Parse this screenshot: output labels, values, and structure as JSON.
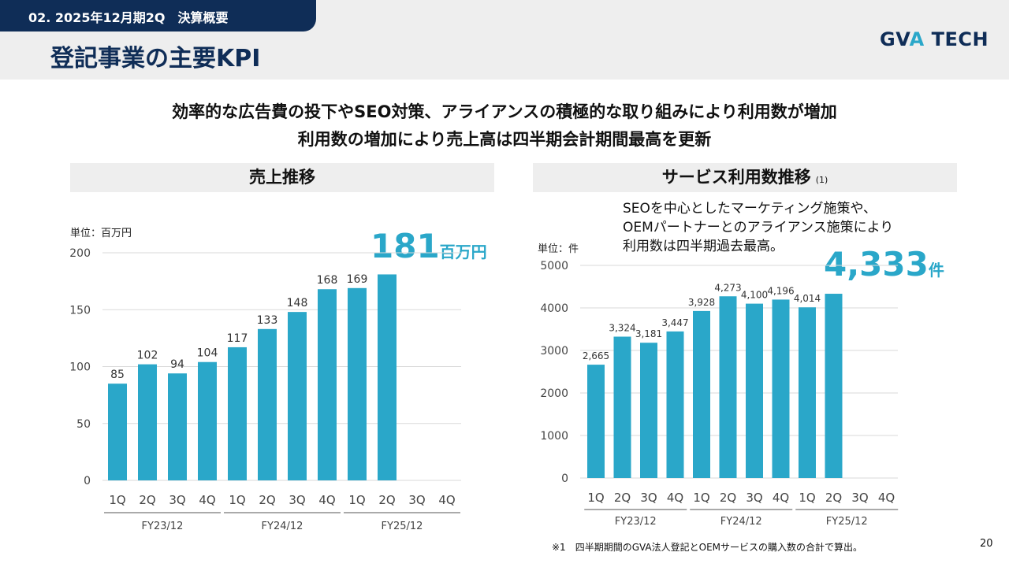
{
  "header": {
    "section_tag": "02. 2025年12月期2Q　決算概要",
    "title": "登記事業の主要KPI",
    "logo_main": "GV",
    "logo_accent": "A",
    "logo_rest": " TECH"
  },
  "headline": {
    "line1": "効率的な広告費の投下やSEO対策、アライアンスの積極的な取り組みにより利用数が増加",
    "line2": "利用数の増加により売上高は四半期会計期間最高を更新"
  },
  "sales_panel": {
    "title": "売上推移",
    "unit": "単位：百万円",
    "highlight_value": "181",
    "highlight_suffix": "百万円"
  },
  "usage_panel": {
    "title": "サービス利用数推移",
    "title_note": "(1)",
    "unit": "単位：件",
    "highlight_value": "4,333",
    "highlight_suffix": "件",
    "callout": [
      "SEOを中心としたマーケティング施策や、",
      "OEMパートナーとのアライアンス施策により",
      "利用数は四半期過去最高。"
    ]
  },
  "footnote": "※1　四半期期間のGVA法人登記とOEMサービスの購入数の合計で算出。",
  "page_number": "20",
  "colors": {
    "bar": "#2aa7c9",
    "navy": "#0f2d57",
    "grid": "#d9d9d9"
  },
  "chart_data": [
    {
      "type": "bar",
      "title": "売上推移",
      "ylabel": "単位：百万円",
      "ylim": [
        0,
        200
      ],
      "yticks": [
        0,
        50,
        100,
        150,
        200
      ],
      "categories": [
        "1Q",
        "2Q",
        "3Q",
        "4Q",
        "1Q",
        "2Q",
        "3Q",
        "4Q",
        "1Q",
        "2Q",
        "3Q",
        "4Q"
      ],
      "groups": [
        {
          "label": "FY23/12",
          "size": 4
        },
        {
          "label": "FY24/12",
          "size": 4
        },
        {
          "label": "FY25/12",
          "size": 4
        }
      ],
      "values": [
        85,
        102,
        94,
        104,
        117,
        133,
        148,
        168,
        169,
        181,
        null,
        null
      ],
      "data_labels": [
        "85",
        "102",
        "94",
        "104",
        "117",
        "133",
        "148",
        "168",
        "169",
        "",
        "",
        ""
      ],
      "grid": true
    },
    {
      "type": "bar",
      "title": "サービス利用数推移",
      "ylabel": "単位：件",
      "ylim": [
        0,
        5000
      ],
      "yticks": [
        0,
        1000,
        2000,
        3000,
        4000,
        5000
      ],
      "categories": [
        "1Q",
        "2Q",
        "3Q",
        "4Q",
        "1Q",
        "2Q",
        "3Q",
        "4Q",
        "1Q",
        "2Q",
        "3Q",
        "4Q"
      ],
      "groups": [
        {
          "label": "FY23/12",
          "size": 4
        },
        {
          "label": "FY24/12",
          "size": 4
        },
        {
          "label": "FY25/12",
          "size": 4
        }
      ],
      "values": [
        2665,
        3324,
        3181,
        3447,
        3928,
        4273,
        4100,
        4196,
        4014,
        4333,
        null,
        null
      ],
      "data_labels": [
        "2,665",
        "3,324",
        "3,181",
        "3,447",
        "3,928",
        "4,273",
        "4,100",
        "4,196",
        "4,014",
        "",
        "",
        ""
      ],
      "grid": true
    }
  ]
}
